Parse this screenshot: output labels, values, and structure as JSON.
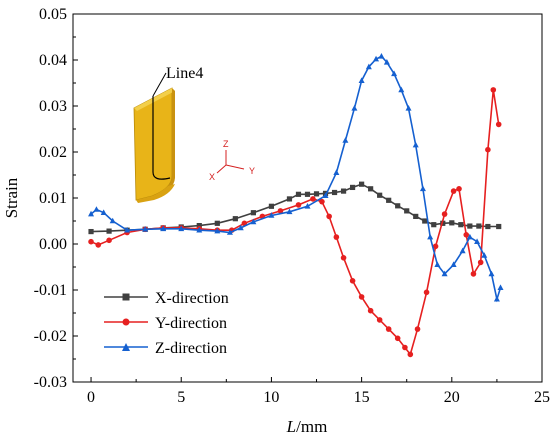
{
  "chart_data": {
    "type": "line",
    "xlabel_italic": "L",
    "xlabel_unit": "/mm",
    "ylabel": "Strain",
    "xlim": [
      -1,
      25
    ],
    "ylim": [
      -0.03,
      0.05
    ],
    "xticks": [
      0,
      5,
      10,
      15,
      20,
      25
    ],
    "xtick_labels": [
      "0",
      "5",
      "10",
      "15",
      "20",
      "25"
    ],
    "yticks": [
      -0.03,
      -0.02,
      -0.01,
      0.0,
      0.01,
      0.02,
      0.03,
      0.04,
      0.05
    ],
    "ytick_labels": [
      "-0.03",
      "-0.02",
      "-0.01",
      "0.00",
      "0.01",
      "0.02",
      "0.03",
      "0.04",
      "0.05"
    ],
    "legend_position": "bottom-left",
    "annotation": "Line4",
    "triad_labels": [
      "Z",
      "X",
      "Y"
    ],
    "series": [
      {
        "name": "X-direction",
        "color": "#404040",
        "marker": "square",
        "x": [
          0,
          1,
          2,
          3,
          4,
          5,
          6,
          7,
          8,
          9,
          10,
          11,
          11.5,
          12,
          12.5,
          13,
          13.5,
          14,
          14.5,
          15,
          15.5,
          16,
          16.5,
          17,
          17.5,
          18,
          18.5,
          19,
          19.5,
          20,
          20.5,
          21,
          21.5,
          22,
          22.6
        ],
        "y": [
          0.0027,
          0.0028,
          0.003,
          0.0032,
          0.0035,
          0.0037,
          0.004,
          0.0045,
          0.0055,
          0.0068,
          0.0082,
          0.0098,
          0.0108,
          0.0108,
          0.0109,
          0.011,
          0.0112,
          0.0115,
          0.0123,
          0.013,
          0.012,
          0.0106,
          0.0095,
          0.0083,
          0.0072,
          0.006,
          0.005,
          0.0042,
          0.0045,
          0.0046,
          0.0042,
          0.0039,
          0.0039,
          0.0038,
          0.0038
        ]
      },
      {
        "name": "Y-direction",
        "color": "#e62020",
        "marker": "circle",
        "x": [
          0,
          0.4,
          1,
          2,
          3,
          4,
          5,
          6,
          7,
          7.8,
          8.5,
          9.5,
          10.5,
          11.5,
          12.3,
          12.8,
          13.2,
          13.6,
          14,
          14.5,
          15,
          15.5,
          16,
          16.5,
          17,
          17.4,
          17.7,
          18.1,
          18.6,
          19.1,
          19.6,
          20.1,
          20.4,
          20.8,
          21.2,
          21.6,
          22,
          22.3,
          22.6
        ],
        "y": [
          0.0005,
          -0.0002,
          0.0008,
          0.0025,
          0.0032,
          0.0035,
          0.0035,
          0.0033,
          0.003,
          0.003,
          0.0045,
          0.006,
          0.0072,
          0.0085,
          0.0098,
          0.0092,
          0.006,
          0.0015,
          -0.003,
          -0.008,
          -0.0115,
          -0.0145,
          -0.0165,
          -0.0185,
          -0.0205,
          -0.0225,
          -0.024,
          -0.0185,
          -0.0105,
          -0.0005,
          0.0065,
          0.0115,
          0.012,
          0.002,
          -0.0065,
          -0.004,
          0.0205,
          0.0335,
          0.026
        ]
      },
      {
        "name": "Z-direction",
        "color": "#1560d0",
        "marker": "triangle",
        "x": [
          0,
          0.3,
          0.7,
          1.2,
          2,
          3,
          4,
          5,
          6,
          7,
          7.7,
          8.3,
          9,
          10,
          11,
          12,
          13,
          13.6,
          14.1,
          14.6,
          15,
          15.4,
          15.8,
          16.1,
          16.4,
          16.8,
          17.2,
          17.6,
          18,
          18.4,
          18.8,
          19.2,
          19.6,
          20.1,
          20.6,
          21,
          21.4,
          21.8,
          22.2,
          22.5,
          22.7
        ],
        "y": [
          0.0065,
          0.0075,
          0.0068,
          0.005,
          0.003,
          0.0032,
          0.0033,
          0.0033,
          0.003,
          0.0028,
          0.0025,
          0.0035,
          0.0048,
          0.0062,
          0.007,
          0.0082,
          0.0105,
          0.0155,
          0.0225,
          0.0295,
          0.0355,
          0.0385,
          0.0402,
          0.0408,
          0.0395,
          0.037,
          0.0335,
          0.0295,
          0.0215,
          0.012,
          0.0015,
          -0.0045,
          -0.0065,
          -0.0045,
          -0.0015,
          0.0015,
          0.0005,
          -0.0025,
          -0.0065,
          -0.012,
          -0.0095
        ]
      }
    ]
  }
}
